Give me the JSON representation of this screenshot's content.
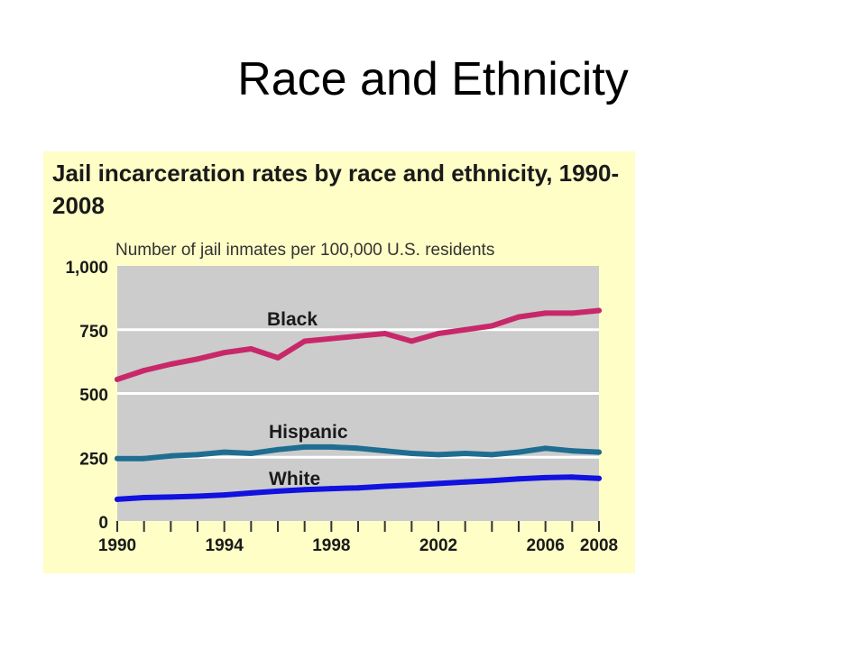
{
  "slide": {
    "title": "Race and Ethnicity"
  },
  "colors": {
    "panel_background": "#fefec6",
    "plot_background": "#cccccc",
    "gridline": "#ffffff",
    "black_series": "#c8286a",
    "hispantic_series_note": "",
    "hispanic_series": "#1f6e91",
    "white_series": "#1111e0"
  },
  "chart_data": {
    "type": "line",
    "title": "Jail incarceration rates by race and ethnicity, 1990-2008",
    "subtitle": "Number of jail inmates per 100,000 U.S. residents",
    "xlabel": "",
    "ylabel": "",
    "x": [
      1990,
      1991,
      1992,
      1993,
      1994,
      1995,
      1996,
      1997,
      1998,
      1999,
      2000,
      2001,
      2002,
      2003,
      2004,
      2005,
      2006,
      2007,
      2008
    ],
    "xlim": [
      1990,
      2008
    ],
    "ylim": [
      0,
      1000
    ],
    "x_tick_labels": [
      "1990",
      "1994",
      "1998",
      "2002",
      "2006",
      "2008"
    ],
    "y_tick_labels": [
      "0",
      "250",
      "500",
      "750",
      "1,000"
    ],
    "grid": true,
    "series": [
      {
        "name": "Black",
        "color": "#c8286a",
        "values": [
          555,
          590,
          615,
          635,
          660,
          675,
          640,
          705,
          715,
          725,
          735,
          705,
          735,
          750,
          765,
          800,
          815,
          815,
          825
        ]
      },
      {
        "name": "Hispanic",
        "color": "#1f6e91",
        "values": [
          245,
          245,
          255,
          260,
          270,
          265,
          280,
          290,
          290,
          285,
          275,
          265,
          260,
          265,
          260,
          270,
          285,
          275,
          270
        ]
      },
      {
        "name": "White",
        "color": "#1111e0",
        "values": [
          85,
          92,
          94,
          97,
          102,
          110,
          117,
          123,
          127,
          130,
          136,
          141,
          147,
          153,
          158,
          165,
          170,
          172,
          167
        ]
      }
    ]
  }
}
